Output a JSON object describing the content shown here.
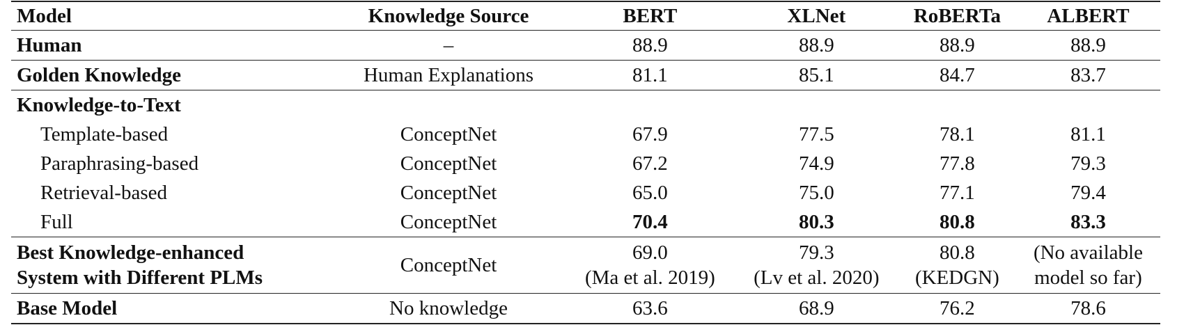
{
  "table": {
    "headers": [
      "Model",
      "Knowledge Source",
      "BERT",
      "XLNet",
      "RoBERTa",
      "ALBERT"
    ],
    "rows": [
      {
        "model": "Human",
        "source": "–",
        "values": [
          "88.9",
          "88.9",
          "88.9",
          "88.9"
        ]
      },
      {
        "model": "Golden Knowledge",
        "source": "Human Explanations",
        "values": [
          "81.1",
          "85.1",
          "84.7",
          "83.7"
        ]
      },
      {
        "section": "Knowledge-to-Text"
      },
      {
        "model": "Template-based",
        "source": "ConceptNet",
        "values": [
          "67.9",
          "77.5",
          "78.1",
          "81.1"
        ]
      },
      {
        "model": "Paraphrasing-based",
        "source": "ConceptNet",
        "values": [
          "67.2",
          "74.9",
          "77.8",
          "79.3"
        ]
      },
      {
        "model": "Retrieval-based",
        "source": "ConceptNet",
        "values": [
          "65.0",
          "75.0",
          "77.1",
          "79.4"
        ]
      },
      {
        "model": "Full",
        "source": "ConceptNet",
        "values": [
          "70.4",
          "80.3",
          "80.8",
          "83.3"
        ]
      },
      {
        "model_line1": "Best Knowledge-enhanced",
        "model_line2": "System with Different PLMs",
        "source": "ConceptNet",
        "values": [
          "69.0",
          "79.3",
          "80.8",
          "(No available"
        ],
        "notes": [
          "(Ma et al. 2019)",
          "(Lv et al. 2020)",
          "(KEDGN)",
          "model so far)"
        ]
      },
      {
        "model": "Base Model",
        "source": "No knowledge",
        "values": [
          "63.6",
          "68.9",
          "76.2",
          "78.6"
        ]
      }
    ]
  }
}
